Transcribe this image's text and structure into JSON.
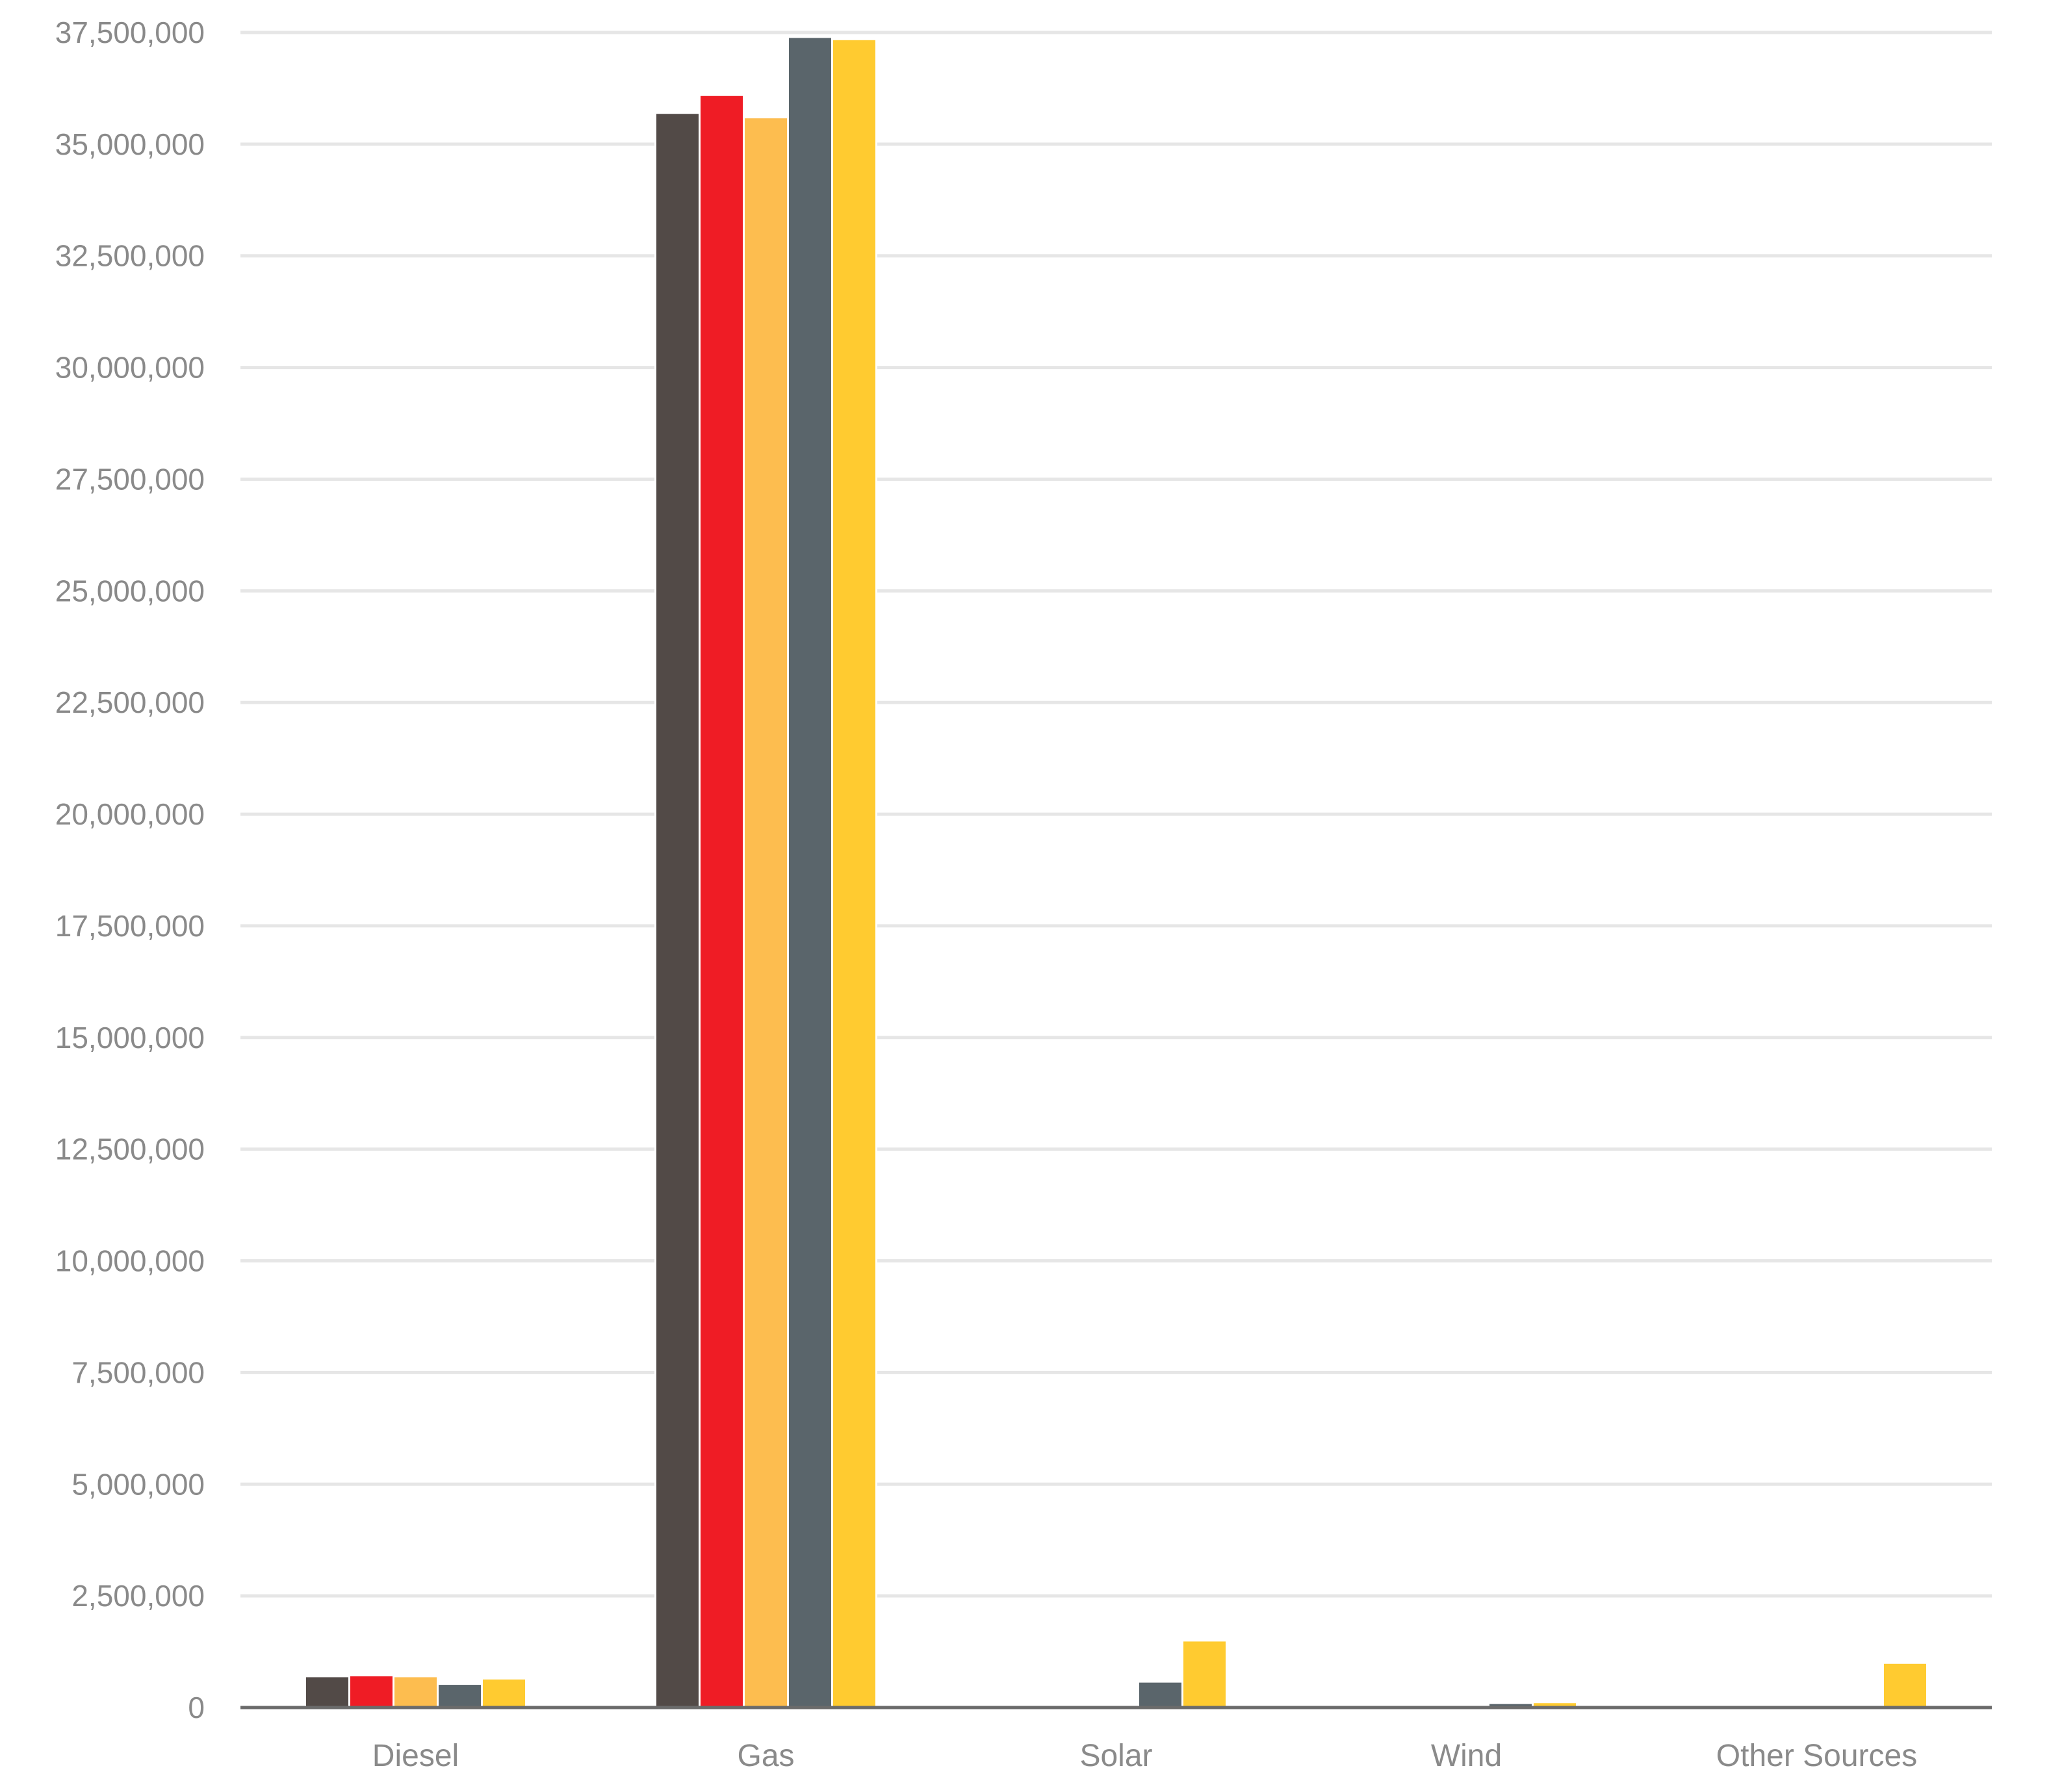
{
  "chart_data": {
    "type": "bar",
    "categories": [
      "Diesel",
      "Gas",
      "Solar",
      "Wind",
      "Other Sources"
    ],
    "series": [
      {
        "color": "#524a47",
        "values": [
          700000,
          35700000,
          20000,
          40000,
          15000
        ]
      },
      {
        "color": "#ef1c25",
        "values": [
          720000,
          36100000,
          20000,
          40000,
          20000
        ]
      },
      {
        "color": "#fdbd4f",
        "values": [
          700000,
          35600000,
          20000,
          50000,
          20000
        ]
      },
      {
        "color": "#5a656b",
        "values": [
          530000,
          37400000,
          580000,
          100000,
          20000
        ]
      },
      {
        "color": "#ffcb30",
        "values": [
          650000,
          37350000,
          1500000,
          120000,
          1000000
        ]
      }
    ],
    "yticks": [
      "0",
      "2,500,000",
      "5,000,000",
      "7,500,000",
      "10,000,000",
      "12,500,000",
      "15,000,000",
      "17,500,000",
      "20,000,000",
      "22,500,000",
      "25,000,000",
      "27,500,000",
      "30,000,000",
      "32,500,000",
      "35,000,000",
      "37,500,000"
    ],
    "ylim": [
      0,
      37500000
    ],
    "grid": true,
    "legend": "none"
  }
}
